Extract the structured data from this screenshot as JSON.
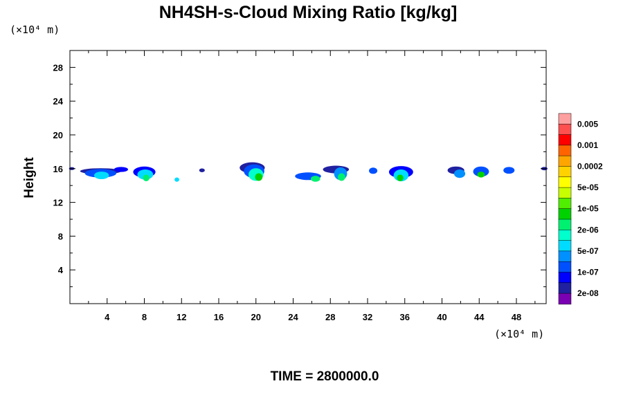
{
  "chart_data": {
    "type": "heatmap",
    "title": "NH4SH-s-Cloud Mixing Ratio [kg/kg]",
    "xlabel": "",
    "ylabel": "Height",
    "x_unit_label": "(×10⁴ m)",
    "y_unit_label": "(×10⁴ m)",
    "time_label": "TIME = 2800000.0",
    "xlim": [
      0,
      51.2
    ],
    "ylim": [
      0,
      30
    ],
    "x_ticks": [
      4,
      8,
      12,
      16,
      20,
      24,
      28,
      32,
      36,
      40,
      44,
      48
    ],
    "y_ticks": [
      4,
      8,
      12,
      16,
      20,
      24,
      28
    ],
    "colorbar": {
      "labels": [
        "0.005",
        "0.001",
        "0.0002",
        "5e-05",
        "1e-05",
        "2e-06",
        "5e-07",
        "1e-07",
        "2e-08"
      ],
      "colors": [
        "#7b00b4",
        "#2020a0",
        "#0000ff",
        "#0050ff",
        "#0090ff",
        "#00dcff",
        "#00ffcc",
        "#00f070",
        "#00d200",
        "#50ee00",
        "#c8ff00",
        "#ffff00",
        "#ffd200",
        "#ffa500",
        "#ff6400",
        "#ff0000",
        "#ff5050",
        "#ffa0a0"
      ]
    },
    "clouds": [
      {
        "x": 0.2,
        "y": 16.0,
        "w": 0.6,
        "h": 0.35,
        "level": 1
      },
      {
        "x": 3.3,
        "y": 15.7,
        "w": 4.4,
        "h": 0.7,
        "level": 1
      },
      {
        "x": 3.3,
        "y": 15.45,
        "w": 3.4,
        "h": 1.0,
        "level": 3
      },
      {
        "x": 3.4,
        "y": 15.2,
        "w": 1.6,
        "h": 0.9,
        "level": 5
      },
      {
        "x": 5.5,
        "y": 15.9,
        "w": 1.5,
        "h": 0.6,
        "level": 2
      },
      {
        "x": 8.0,
        "y": 15.6,
        "w": 2.4,
        "h": 1.3,
        "level": 2
      },
      {
        "x": 8.1,
        "y": 15.3,
        "w": 1.7,
        "h": 1.2,
        "level": 5
      },
      {
        "x": 8.2,
        "y": 14.9,
        "w": 0.7,
        "h": 0.8,
        "level": 7
      },
      {
        "x": 11.5,
        "y": 14.7,
        "w": 0.5,
        "h": 0.5,
        "level": 5
      },
      {
        "x": 14.2,
        "y": 15.8,
        "w": 0.6,
        "h": 0.45,
        "level": 1
      },
      {
        "x": 19.6,
        "y": 16.1,
        "w": 2.7,
        "h": 1.3,
        "level": 1
      },
      {
        "x": 19.8,
        "y": 15.7,
        "w": 2.2,
        "h": 1.6,
        "level": 3
      },
      {
        "x": 20.0,
        "y": 15.3,
        "w": 1.6,
        "h": 1.5,
        "level": 6
      },
      {
        "x": 20.3,
        "y": 15.0,
        "w": 0.8,
        "h": 0.9,
        "level": 8
      },
      {
        "x": 25.6,
        "y": 15.1,
        "w": 2.8,
        "h": 0.9,
        "level": 3
      },
      {
        "x": 26.4,
        "y": 14.8,
        "w": 1.0,
        "h": 0.7,
        "level": 7
      },
      {
        "x": 28.6,
        "y": 15.9,
        "w": 2.8,
        "h": 0.9,
        "level": 1
      },
      {
        "x": 29.1,
        "y": 15.4,
        "w": 1.4,
        "h": 1.5,
        "level": 4
      },
      {
        "x": 29.2,
        "y": 15.0,
        "w": 0.8,
        "h": 0.9,
        "level": 7
      },
      {
        "x": 32.6,
        "y": 15.75,
        "w": 0.9,
        "h": 0.75,
        "level": 3
      },
      {
        "x": 35.6,
        "y": 15.6,
        "w": 2.6,
        "h": 1.4,
        "level": 2
      },
      {
        "x": 35.6,
        "y": 15.2,
        "w": 1.6,
        "h": 1.4,
        "level": 5
      },
      {
        "x": 35.5,
        "y": 14.9,
        "w": 0.7,
        "h": 0.8,
        "level": 8
      },
      {
        "x": 41.5,
        "y": 15.8,
        "w": 1.8,
        "h": 0.9,
        "level": 1
      },
      {
        "x": 41.9,
        "y": 15.4,
        "w": 1.2,
        "h": 1.0,
        "level": 4
      },
      {
        "x": 44.2,
        "y": 15.65,
        "w": 1.7,
        "h": 1.2,
        "level": 3
      },
      {
        "x": 44.2,
        "y": 15.3,
        "w": 0.8,
        "h": 0.7,
        "level": 8
      },
      {
        "x": 47.2,
        "y": 15.8,
        "w": 1.2,
        "h": 0.8,
        "level": 3
      },
      {
        "x": 51.0,
        "y": 16.0,
        "w": 0.7,
        "h": 0.4,
        "level": 1
      }
    ]
  }
}
